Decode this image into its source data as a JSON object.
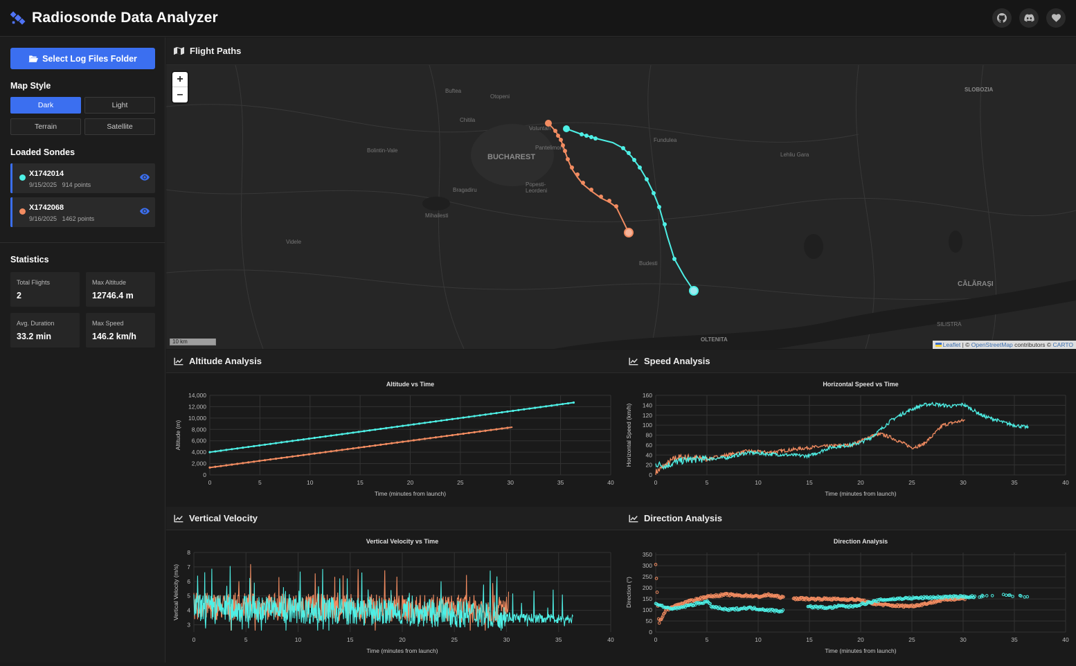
{
  "header": {
    "title": "Radiosonde Data Analyzer"
  },
  "sidebar": {
    "select_button": "Select Log Files Folder",
    "map_style_title": "Map Style",
    "map_styles": [
      "Dark",
      "Light",
      "Terrain",
      "Satellite"
    ],
    "active_style": "Dark",
    "loaded_title": "Loaded Sondes",
    "sondes": [
      {
        "id": "X1742014",
        "date": "9/15/2025",
        "points": "914 points",
        "color": "#4ef0e6"
      },
      {
        "id": "X1742068",
        "date": "9/16/2025",
        "points": "1462 points",
        "color": "#f28c61"
      }
    ],
    "stats_title": "Statistics",
    "stats": [
      {
        "label": "Total Flights",
        "value": "2"
      },
      {
        "label": "Max Altitude",
        "value": "12746.4 m"
      },
      {
        "label": "Avg. Duration",
        "value": "33.2 min"
      },
      {
        "label": "Max Speed",
        "value": "146.2 km/h"
      }
    ]
  },
  "map": {
    "title": "Flight Paths",
    "scale": "10 km",
    "attribution": {
      "leaflet": "Leaflet",
      "sep": " | © ",
      "osm": "OpenStreetMap",
      "mid": " contributors © ",
      "carto": "CARTO"
    },
    "places": [
      "Buftea",
      "Otopeni",
      "SLOBOZIA",
      "Chitila",
      "Voluntari",
      "Fundulea",
      "Bolintin-Vale",
      "BUCHAREST",
      "Pantelimon",
      "Lehliu Gara",
      "Bragadiru",
      "Popesti-Leordeni",
      "Mihailesti",
      "Videle",
      "Budesti",
      "CĂLĂRAȘI",
      "SILISTRA",
      "OLTENITA"
    ]
  },
  "colors": {
    "cyan": "#4ef0e6",
    "orange": "#f28c61",
    "accent": "#3b6ff0"
  },
  "panels": {
    "altitude": "Altitude Analysis",
    "speed": "Speed Analysis",
    "vertical": "Vertical Velocity",
    "direction": "Direction Analysis"
  },
  "chart_data": [
    {
      "type": "line",
      "title": "Altitude vs Time",
      "xlabel": "Time (minutes from launch)",
      "ylabel": "Altitude (m)",
      "xlim": [
        0,
        40
      ],
      "ylim": [
        0,
        14000
      ],
      "xticks": [
        0,
        5,
        10,
        15,
        20,
        25,
        30,
        35,
        40
      ],
      "yticks": [
        0,
        2000,
        4000,
        6000,
        8000,
        10000,
        12000,
        14000
      ],
      "ytick_labels": [
        "0",
        "2,000",
        "4,000",
        "6,000",
        "8,000",
        "10,000",
        "12,000",
        "14,000"
      ],
      "series": [
        {
          "name": "X1742014",
          "x": [
            0,
            36.4
          ],
          "y": [
            4000,
            12746
          ]
        },
        {
          "name": "X1742068",
          "x": [
            0,
            30.2
          ],
          "y": [
            1300,
            8400
          ]
        }
      ]
    },
    {
      "type": "line",
      "title": "Horizontal Speed vs Time",
      "xlabel": "Time (minutes from launch)",
      "ylabel": "Horizontal Speed (km/h)",
      "xlim": [
        0,
        40
      ],
      "ylim": [
        0,
        160
      ],
      "xticks": [
        0,
        5,
        10,
        15,
        20,
        25,
        30,
        35,
        40
      ],
      "yticks": [
        0,
        20,
        40,
        60,
        80,
        100,
        120,
        140,
        160
      ],
      "ytick_labels": [
        "0",
        "20",
        "40",
        "60",
        "80",
        "100",
        "120",
        "140",
        "160"
      ],
      "series": [
        {
          "name": "X1742014",
          "x": [
            0,
            1,
            2,
            3,
            5,
            7,
            9,
            11,
            13,
            15,
            17,
            19,
            20,
            21,
            22,
            23,
            24,
            25,
            26,
            27,
            28,
            29,
            30,
            31,
            32,
            33,
            34,
            35,
            36.4
          ],
          "y": [
            22,
            18,
            26,
            30,
            32,
            35,
            45,
            42,
            40,
            38,
            55,
            60,
            65,
            75,
            92,
            110,
            122,
            132,
            140,
            143,
            140,
            138,
            142,
            130,
            118,
            112,
            105,
            100,
            95
          ]
        },
        {
          "name": "X1742068",
          "x": [
            0,
            1,
            2,
            3,
            5,
            7,
            9,
            11,
            13,
            15,
            17,
            19,
            20,
            21,
            22,
            23,
            24,
            25,
            26,
            27,
            28,
            29,
            30.2
          ],
          "y": [
            5,
            20,
            35,
            35,
            32,
            40,
            48,
            45,
            50,
            55,
            58,
            60,
            68,
            78,
            82,
            75,
            65,
            55,
            60,
            78,
            100,
            105,
            110
          ]
        }
      ]
    },
    {
      "type": "line",
      "title": "Vertical Velocity vs Time",
      "xlabel": "Time (minutes from launch)",
      "ylabel": "Vertical Velocity (m/s)",
      "xlim": [
        0,
        40
      ],
      "ylim": [
        2.5,
        8
      ],
      "xticks": [
        0,
        5,
        10,
        15,
        20,
        25,
        30,
        35,
        40
      ],
      "yticks": [
        3,
        4,
        5,
        6,
        7,
        8
      ],
      "ytick_labels": [
        "3",
        "4",
        "5",
        "6",
        "7",
        "8"
      ],
      "series": [
        {
          "name": "X1742014",
          "x": [
            0,
            36.4
          ],
          "y": [
            3.9,
            3.3
          ]
        },
        {
          "name": "X1742068",
          "x": [
            0,
            30.2
          ],
          "y": [
            4.0,
            3.8
          ]
        }
      ]
    },
    {
      "type": "scatter",
      "title": "Direction Analysis",
      "xlabel": "Time (minutes from launch)",
      "ylabel": "Direction (°)",
      "xlim": [
        0,
        40
      ],
      "ylim": [
        0,
        360
      ],
      "xticks": [
        0,
        5,
        10,
        15,
        20,
        25,
        30,
        35,
        40
      ],
      "yticks": [
        0,
        50,
        100,
        150,
        200,
        250,
        300,
        350
      ],
      "ytick_labels": [
        "0",
        "50",
        "100",
        "150",
        "200",
        "250",
        "300",
        "350"
      ],
      "series": [
        {
          "name": "X1742014",
          "x": [
            0,
            1,
            2,
            3,
            4,
            5,
            5.5,
            6,
            7,
            8,
            9,
            10,
            11,
            12,
            15,
            16,
            17,
            18,
            19,
            20,
            21,
            22,
            24,
            26,
            28,
            30,
            31,
            32,
            33,
            34,
            35,
            36.4
          ],
          "y": [
            130,
            110,
            105,
            118,
            128,
            138,
            115,
            110,
            100,
            105,
            110,
            105,
            100,
            95,
            115,
            112,
            110,
            118,
            115,
            125,
            135,
            145,
            152,
            155,
            158,
            160,
            160,
            162,
            165,
            165,
            162,
            160
          ]
        },
        {
          "name": "X1742068",
          "x": [
            0,
            0.3,
            1,
            2,
            3,
            4,
            5,
            6,
            7,
            8,
            9,
            10,
            11,
            12,
            13,
            14,
            15,
            16,
            17,
            18,
            19,
            20,
            21,
            22,
            23,
            24,
            25,
            26,
            27,
            28,
            29,
            30.2
          ],
          "y": [
            305,
            40,
            100,
            120,
            135,
            148,
            160,
            165,
            170,
            165,
            165,
            160,
            168,
            160,
            150,
            152,
            150,
            150,
            150,
            148,
            148,
            145,
            130,
            125,
            120,
            118,
            118,
            125,
            135,
            145,
            150,
            152
          ]
        }
      ]
    }
  ]
}
